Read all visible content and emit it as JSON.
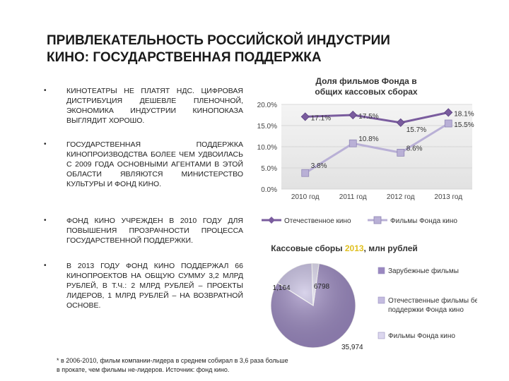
{
  "title_line1": "ПРИВЛЕКАТЕЛЬНОСТЬ РОССИЙСКОЙ ИНДУСТРИИ",
  "title_line2": "КИНО: ГОСУДАРСТВЕННАЯ ПОДДЕРЖКА",
  "bullets": [
    "КИНОТЕАТРЫ НЕ ПЛАТЯТ НДС. ЦИФРОВАЯ ДИСТРИБУЦИЯ ДЕШЕВЛЕ ПЛЕНОЧНОЙ, ЭКОНОМИКА ИНДУСТРИИ КИНОПОКАЗА ВЫГЛЯДИТ ХОРОШО.",
    "ГОСУДАРСТВЕННАЯ ПОДДЕРЖКА КИНОПРОИЗВОДСТВА БОЛЕЕ ЧЕМ УДВОИЛАСЬ С 2009 ГОДА ОСНОВНЫМИ АГЕНТАМИ В ЭТОЙ ОБЛАСТИ ЯВЛЯЮТСЯ МИНИСТЕРСТВО КУЛЬТУРЫ И ФОНД КИНО.",
    "ФОНД КИНО УЧРЕЖДЕН В 2010 ГОДУ ДЛЯ ПОВЫШЕНИЯ ПРОЗРАЧНОСТИ ПРОЦЕССА ГОСУДАРСТВЕННОЙ ПОДДЕРЖКИ.",
    "В 2013 ГОДУ ФОНД КИНО ПОДДЕРЖАЛ 66 КИНОПРОЕКТОВ НА ОБЩУЮ СУММУ 3,2 МЛРД РУБЛЕЙ, В Т.Ч.: 2 МЛРД РУБЛЕЙ – ПРОЕКТЫ ЛИДЕРОВ, 1 МЛРД РУБЛЕЙ – НА ВОЗВРАТНОЙ ОСНОВЕ."
  ],
  "bullet_char": "•",
  "footnote": "* в 2006-2010, фильм компании-лидера в среднем собирал в 3,6 раза больше в прокате, чем фильмы не-лидеров. Источник: фонд кино.",
  "chart_data": [
    {
      "type": "line",
      "title": "Доля фильмов Фонда в общих кассовых сборах",
      "categories": [
        "2010 год",
        "2011 год",
        "2012 год",
        "2013 год"
      ],
      "yticks": [
        "0.0%",
        "5.0%",
        "10.0%",
        "15.0%",
        "20.0%"
      ],
      "ylim": [
        0,
        20
      ],
      "legend_position": "bottom",
      "series": [
        {
          "name": "Отечественное кино",
          "values": [
            17.1,
            17.5,
            15.7,
            18.1
          ],
          "labels": [
            "17.1%",
            "17.5%",
            "15.7%",
            "18.1%"
          ],
          "color": "#7a5c9e"
        },
        {
          "name": "Фильмы Фонда кино",
          "values": [
            3.8,
            10.8,
            8.6,
            15.5
          ],
          "labels": [
            "3.8%",
            "10.8%",
            "8.6%",
            "15.5%"
          ],
          "color": "#b9b0d6"
        }
      ]
    },
    {
      "type": "pie",
      "title_prefix": "Кассовые сборы ",
      "title_year": "2013",
      "title_suffix": ", млн рублей",
      "year_color": "#e0c020",
      "legend_position": "right",
      "slices": [
        {
          "name": "Зарубежные фильмы",
          "value": 35974,
          "label": "35,974",
          "color": "#9a88c0"
        },
        {
          "name": "Отечественные фильмы без поддержки Фонда кино",
          "value": 6798,
          "label": "6798",
          "color": "#c4bce0"
        },
        {
          "name": "Фильмы Фонда кино",
          "value": 1164,
          "label": "1,164",
          "color": "#dcd7ee"
        }
      ]
    }
  ]
}
